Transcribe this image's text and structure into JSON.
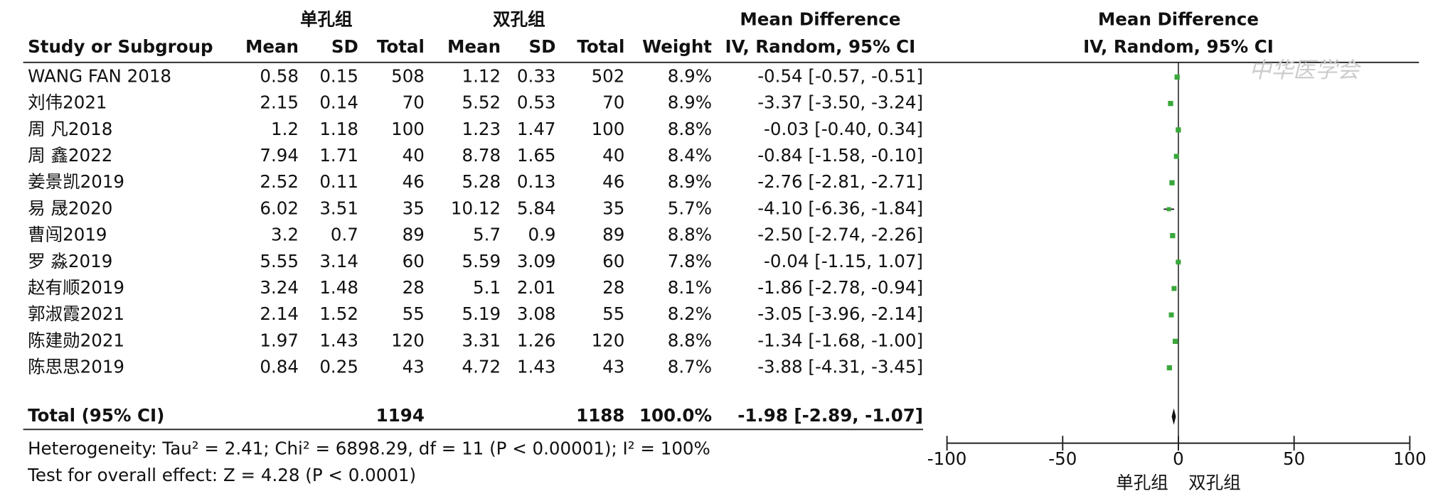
{
  "header": {
    "group1": "单孔组",
    "group2": "双孔组",
    "ci_title": "Mean Difference",
    "columns": [
      "Study or Subgroup",
      "Mean",
      "SD",
      "Total",
      "Mean",
      "SD",
      "Total",
      "Weight",
      "IV, Random, 95% CI"
    ]
  },
  "plot": {
    "title": "Mean Difference",
    "subtitle": "IV, Random, 95% CI",
    "xlim": [
      -100,
      100
    ],
    "xticks": [
      -100,
      -50,
      0,
      50,
      100
    ],
    "left_label": "单孔组",
    "right_label": "双孔组",
    "color": "#3aa83a",
    "watermark": "中华医学会"
  },
  "rows": [
    {
      "study": "WANG FAN 2018",
      "mean1": 0.58,
      "sd1": 0.15,
      "total1": 508,
      "mean2": 1.12,
      "sd2": 0.33,
      "total2": 502,
      "weight": 8.9,
      "weight_label": "8.9%",
      "md": -0.54,
      "ci": [
        -0.57,
        -0.51
      ],
      "md_label": "-0.54 [-0.57, -0.51]"
    },
    {
      "study": "刘伟2021",
      "mean1": 2.15,
      "sd1": 0.14,
      "total1": 70,
      "mean2": 5.52,
      "sd2": 0.53,
      "total2": 70,
      "weight": 8.9,
      "weight_label": "8.9%",
      "md": -3.37,
      "ci": [
        -3.5,
        -3.24
      ],
      "md_label": "-3.37 [-3.50, -3.24]"
    },
    {
      "study": "周 凡2018",
      "mean1": 1.2,
      "sd1": 1.18,
      "total1": 100,
      "mean2": 1.23,
      "sd2": 1.47,
      "total2": 100,
      "weight": 8.8,
      "weight_label": "8.8%",
      "md": -0.03,
      "ci": [
        -0.4,
        0.34
      ],
      "md_label": "-0.03 [-0.40, 0.34]"
    },
    {
      "study": "周 鑫2022",
      "mean1": 7.94,
      "sd1": 1.71,
      "total1": 40,
      "mean2": 8.78,
      "sd2": 1.65,
      "total2": 40,
      "weight": 8.4,
      "weight_label": "8.4%",
      "md": -0.84,
      "ci": [
        -1.58,
        -0.1
      ],
      "md_label": "-0.84 [-1.58, -0.10]"
    },
    {
      "study": "姜景凯2019",
      "mean1": 2.52,
      "sd1": 0.11,
      "total1": 46,
      "mean2": 5.28,
      "sd2": 0.13,
      "total2": 46,
      "weight": 8.9,
      "weight_label": "8.9%",
      "md": -2.76,
      "ci": [
        -2.81,
        -2.71
      ],
      "md_label": "-2.76 [-2.81, -2.71]"
    },
    {
      "study": "易 晟2020",
      "mean1": 6.02,
      "sd1": 3.51,
      "total1": 35,
      "mean2": 10.12,
      "sd2": 5.84,
      "total2": 35,
      "weight": 5.7,
      "weight_label": "5.7%",
      "md": -4.1,
      "ci": [
        -6.36,
        -1.84
      ],
      "md_label": "-4.10 [-6.36, -1.84]"
    },
    {
      "study": "曹闯2019",
      "mean1": 3.2,
      "sd1": 0.7,
      "total1": 89,
      "mean2": 5.7,
      "sd2": 0.9,
      "total2": 89,
      "weight": 8.8,
      "weight_label": "8.8%",
      "md": -2.5,
      "ci": [
        -2.74,
        -2.26
      ],
      "md_label": "-2.50 [-2.74, -2.26]"
    },
    {
      "study": "罗 淼2019",
      "mean1": 5.55,
      "sd1": 3.14,
      "total1": 60,
      "mean2": 5.59,
      "sd2": 3.09,
      "total2": 60,
      "weight": 7.8,
      "weight_label": "7.8%",
      "md": -0.04,
      "ci": [
        -1.15,
        1.07
      ],
      "md_label": "-0.04 [-1.15, 1.07]"
    },
    {
      "study": "赵有顺2019",
      "mean1": 3.24,
      "sd1": 1.48,
      "total1": 28,
      "mean2": 5.1,
      "sd2": 2.01,
      "total2": 28,
      "weight": 8.1,
      "weight_label": "8.1%",
      "md": -1.86,
      "ci": [
        -2.78,
        -0.94
      ],
      "md_label": "-1.86 [-2.78, -0.94]"
    },
    {
      "study": "郭淑霞2021",
      "mean1": 2.14,
      "sd1": 1.52,
      "total1": 55,
      "mean2": 5.19,
      "sd2": 3.08,
      "total2": 55,
      "weight": 8.2,
      "weight_label": "8.2%",
      "md": -3.05,
      "ci": [
        -3.96,
        -2.14
      ],
      "md_label": "-3.05 [-3.96, -2.14]"
    },
    {
      "study": "陈建勋2021",
      "mean1": 1.97,
      "sd1": 1.43,
      "total1": 120,
      "mean2": 3.31,
      "sd2": 1.26,
      "total2": 120,
      "weight": 8.8,
      "weight_label": "8.8%",
      "md": -1.34,
      "ci": [
        -1.68,
        -1.0
      ],
      "md_label": "-1.34 [-1.68, -1.00]"
    },
    {
      "study": "陈思思2019",
      "mean1": 0.84,
      "sd1": 0.25,
      "total1": 43,
      "mean2": 4.72,
      "sd2": 1.43,
      "total2": 43,
      "weight": 8.7,
      "weight_label": "8.7%",
      "md": -3.88,
      "ci": [
        -4.31,
        -3.45
      ],
      "md_label": "-3.88 [-4.31, -3.45]"
    }
  ],
  "total": {
    "study": "Total (95% CI)",
    "total1": 1194,
    "total2": 1188,
    "weight_label": "100.0%",
    "md": -1.98,
    "ci": [
      -2.89,
      -1.07
    ],
    "md_label": "-1.98 [-2.89, -1.07]"
  },
  "footer": {
    "heterogeneity": "Heterogeneity: Tau² = 2.41; Chi² = 6898.29, df = 11 (P < 0.00001); I² = 100%",
    "overall": "Test for overall effect: Z = 4.28 (P < 0.0001)"
  }
}
